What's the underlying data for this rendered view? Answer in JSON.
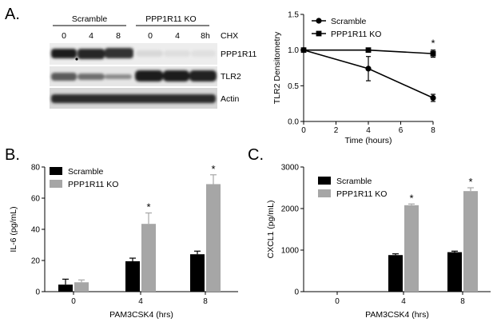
{
  "panels": {
    "a": {
      "label": "A.",
      "blot": {
        "groups": [
          "Scramble",
          "PPP1R11 KO"
        ],
        "lane_labels": [
          "0",
          "4",
          "8",
          "0",
          "4",
          "8h"
        ],
        "treatment_label": "CHX",
        "bands": [
          "PPP1R11",
          "TLR2",
          "Actin"
        ]
      },
      "chart": {
        "type": "line",
        "xlabel": "Time (hours)",
        "ylabel": "TLR2 Densitometry",
        "x_ticks": [
          "0",
          "2",
          "4",
          "6",
          "8"
        ],
        "y_ticks": [
          "0.0",
          "0.5",
          "1.0",
          "1.5"
        ],
        "xlim": [
          0,
          8
        ],
        "ylim": [
          0,
          1.5
        ],
        "legend_position": "top-right",
        "series": [
          {
            "name": "Scramble",
            "marker": "circle",
            "x": [
              0,
              4,
              8
            ],
            "y": [
              1.0,
              0.74,
              0.33
            ],
            "err": [
              0,
              0.17,
              0.05
            ]
          },
          {
            "name": "PPP1R11 KO",
            "marker": "square",
            "x": [
              0,
              4,
              8
            ],
            "y": [
              1.0,
              1.0,
              0.95
            ],
            "err": [
              0,
              0.02,
              0.05
            ]
          }
        ],
        "annotations": [
          {
            "text": "*",
            "x": 8
          }
        ]
      }
    },
    "b": {
      "label": "B.",
      "chart": {
        "type": "bar",
        "xlabel": "PAM3CSK4 (hrs)",
        "ylabel": "IL-6 (pg/mL)",
        "categories": [
          "0",
          "4",
          "8"
        ],
        "y_ticks": [
          "0",
          "20",
          "40",
          "60",
          "80"
        ],
        "ylim": [
          0,
          80
        ],
        "legend_position": "top-left",
        "series": [
          {
            "name": "Scramble",
            "color": "#000000",
            "values": [
              4.5,
              19.5,
              24
            ],
            "err": [
              3.5,
              2,
              2
            ]
          },
          {
            "name": "PPP1R11 KO",
            "color": "#a6a6a6",
            "values": [
              6,
              43.5,
              69
            ],
            "err": [
              1.5,
              7,
              6
            ]
          }
        ],
        "annotations": [
          {
            "text": "*",
            "category": "4"
          },
          {
            "text": "*",
            "category": "8"
          }
        ]
      }
    },
    "c": {
      "label": "C.",
      "chart": {
        "type": "bar",
        "xlabel": "PAM3CSK4  (hrs)",
        "ylabel": "CXCL1 (pg/mL)",
        "categories": [
          "0",
          "4",
          "8"
        ],
        "y_ticks": [
          "0",
          "1000",
          "2000",
          "3000"
        ],
        "ylim": [
          0,
          3000
        ],
        "legend_position": "top-left",
        "series": [
          {
            "name": "Scramble",
            "color": "#000000",
            "values": [
              0,
              880,
              950
            ],
            "err": [
              0,
              30,
              25
            ]
          },
          {
            "name": "PPP1R11 KO",
            "color": "#a6a6a6",
            "values": [
              0,
              2080,
              2420
            ],
            "err": [
              0,
              30,
              80
            ]
          }
        ],
        "annotations": [
          {
            "text": "*",
            "category": "4"
          },
          {
            "text": "*",
            "category": "8"
          }
        ]
      }
    }
  }
}
